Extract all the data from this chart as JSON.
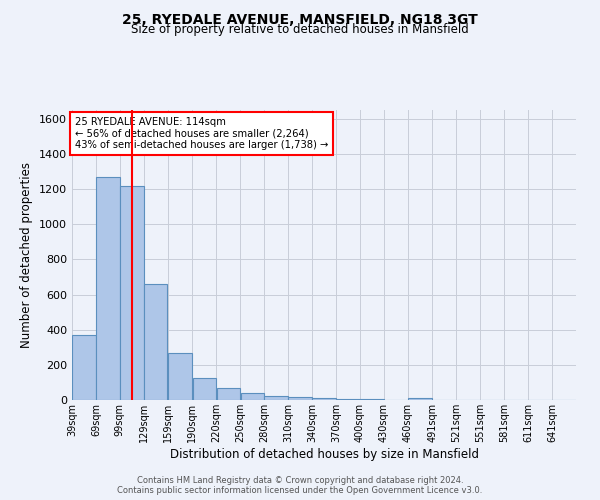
{
  "title_line1": "25, RYEDALE AVENUE, MANSFIELD, NG18 3GT",
  "title_line2": "Size of property relative to detached houses in Mansfield",
  "xlabel": "Distribution of detached houses by size in Mansfield",
  "ylabel": "Number of detached properties",
  "footer_line1": "Contains HM Land Registry data © Crown copyright and database right 2024.",
  "footer_line2": "Contains public sector information licensed under the Open Government Licence v3.0.",
  "annotation_line1": "25 RYEDALE AVENUE: 114sqm",
  "annotation_line2": "← 56% of detached houses are smaller (2,264)",
  "annotation_line3": "43% of semi-detached houses are larger (1,738) →",
  "bar_color": "#aec6e8",
  "bar_edge_color": "#5b8fbe",
  "background_color": "#eef2fa",
  "grid_color": "#c8cdd8",
  "red_line_x": 114,
  "categories": [
    "39sqm",
    "69sqm",
    "99sqm",
    "129sqm",
    "159sqm",
    "190sqm",
    "220sqm",
    "250sqm",
    "280sqm",
    "310sqm",
    "340sqm",
    "370sqm",
    "400sqm",
    "430sqm",
    "460sqm",
    "491sqm",
    "521sqm",
    "551sqm",
    "581sqm",
    "611sqm",
    "641sqm"
  ],
  "bin_edges": [
    39,
    69,
    99,
    129,
    159,
    190,
    220,
    250,
    280,
    310,
    340,
    370,
    400,
    430,
    460,
    491,
    521,
    551,
    581,
    611,
    641,
    671
  ],
  "values": [
    370,
    1270,
    1220,
    660,
    265,
    125,
    70,
    38,
    25,
    15,
    12,
    8,
    5,
    0,
    12,
    0,
    0,
    0,
    0,
    0,
    0
  ],
  "ylim": [
    0,
    1650
  ],
  "yticks": [
    0,
    200,
    400,
    600,
    800,
    1000,
    1200,
    1400,
    1600
  ]
}
